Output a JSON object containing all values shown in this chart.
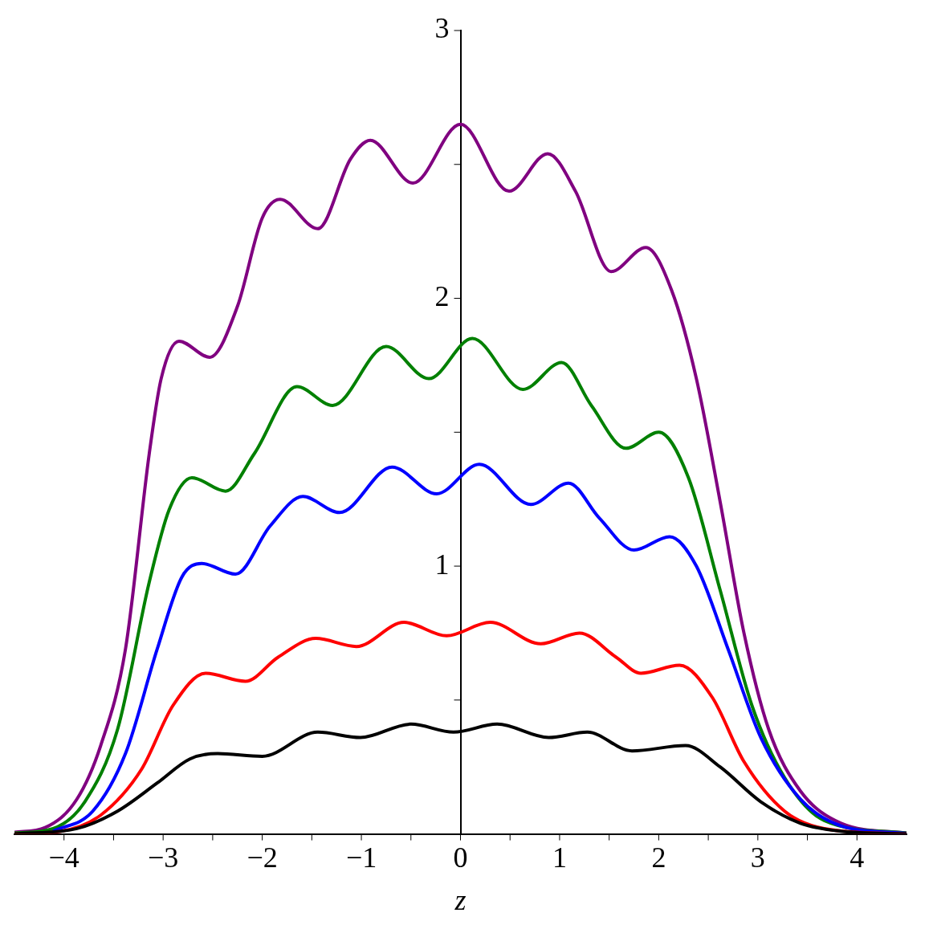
{
  "chart_data": {
    "type": "line",
    "xlabel": "z",
    "xlim": [
      -4.5,
      4.5
    ],
    "ylim": [
      0,
      3
    ],
    "xticks": [
      -4,
      {
        "value": -3.5,
        "label": null
      },
      -3,
      {
        "value": -2.5,
        "label": null
      },
      -2,
      {
        "value": -1.5,
        "label": null
      },
      -1,
      {
        "value": -0.5,
        "label": null
      },
      0,
      {
        "value": 0.5,
        "label": null
      },
      1,
      {
        "value": 1.5,
        "label": null
      },
      2,
      {
        "value": 2.5,
        "label": null
      },
      3,
      {
        "value": 3.5,
        "label": null
      },
      4
    ],
    "yticks": [
      {
        "value": 0.5,
        "label": null
      },
      1,
      {
        "value": 1.5,
        "label": null
      },
      2,
      {
        "value": 2.5,
        "label": null
      },
      3
    ],
    "grid": false,
    "legend": false,
    "marker": "none",
    "line_style": "solid",
    "series": [
      {
        "color": "#000000",
        "x": [
          -4.5,
          -3.87,
          -3.46,
          -3.06,
          -2.73,
          -2.45,
          -2.0,
          -1.44,
          -1.01,
          -0.5,
          -0.07,
          0.37,
          0.89,
          1.28,
          1.73,
          2.27,
          2.62,
          3.03,
          3.43,
          3.84,
          4.5
        ],
        "values": [
          0,
          0.02,
          0.085,
          0.19,
          0.28,
          0.3,
          0.29,
          0.38,
          0.36,
          0.41,
          0.38,
          0.41,
          0.36,
          0.38,
          0.31,
          0.33,
          0.25,
          0.12,
          0.04,
          0.01,
          0
        ]
      },
      {
        "color": "#ff0000",
        "x": [
          -4.5,
          -4.03,
          -3.63,
          -3.22,
          -2.9,
          -2.57,
          -2.17,
          -1.84,
          -1.46,
          -1.05,
          -0.57,
          -0.14,
          0.3,
          0.81,
          1.2,
          1.57,
          1.82,
          2.21,
          2.54,
          2.86,
          3.27,
          3.67,
          4.5
        ],
        "values": [
          0,
          0.01,
          0.07,
          0.24,
          0.48,
          0.6,
          0.57,
          0.66,
          0.73,
          0.7,
          0.79,
          0.74,
          0.79,
          0.71,
          0.75,
          0.66,
          0.6,
          0.63,
          0.51,
          0.27,
          0.085,
          0.02,
          0
        ]
      },
      {
        "color": "#0000ff",
        "x": [
          -4.11,
          -3.71,
          -3.38,
          -3.06,
          -2.81,
          -2.61,
          -2.27,
          -1.92,
          -1.59,
          -1.22,
          -0.69,
          -0.24,
          0.19,
          0.71,
          1.09,
          1.4,
          1.75,
          2.11,
          2.38,
          2.7,
          3.03,
          3.43,
          3.84,
          4.5
        ],
        "values": [
          0.01,
          0.085,
          0.3,
          0.69,
          0.96,
          1.01,
          0.97,
          1.15,
          1.26,
          1.2,
          1.37,
          1.27,
          1.38,
          1.23,
          1.31,
          1.18,
          1.06,
          1.11,
          1.0,
          0.69,
          0.36,
          0.13,
          0.03,
          0.002
        ]
      },
      {
        "color": "#008000",
        "x": [
          -4.5,
          -4.11,
          -3.79,
          -3.46,
          -3.14,
          -2.94,
          -2.71,
          -2.37,
          -2.08,
          -1.65,
          -1.29,
          -0.75,
          -0.32,
          0.12,
          0.63,
          1.02,
          1.32,
          1.67,
          2.0,
          2.3,
          2.62,
          2.94,
          3.27,
          3.67,
          4.5
        ],
        "values": [
          0.003,
          0.02,
          0.12,
          0.39,
          0.94,
          1.21,
          1.33,
          1.28,
          1.42,
          1.67,
          1.6,
          1.82,
          1.7,
          1.85,
          1.66,
          1.76,
          1.6,
          1.44,
          1.5,
          1.33,
          0.91,
          0.48,
          0.21,
          0.05,
          0.003
        ]
      },
      {
        "color": "#800080",
        "x": [
          -4.5,
          -4.19,
          -3.87,
          -3.63,
          -3.38,
          -3.14,
          -3.02,
          -2.84,
          -2.53,
          -2.25,
          -2.0,
          -1.82,
          -1.44,
          -1.11,
          -0.91,
          -0.48,
          0,
          0.49,
          0.88,
          1.16,
          1.52,
          1.87,
          2.13,
          2.38,
          2.62,
          2.86,
          3.11,
          3.43,
          3.84,
          4.5
        ],
        "values": [
          0.006,
          0.024,
          0.13,
          0.33,
          0.69,
          1.42,
          1.7,
          1.84,
          1.78,
          1.97,
          2.3,
          2.37,
          2.26,
          2.52,
          2.59,
          2.43,
          2.65,
          2.4,
          2.54,
          2.4,
          2.1,
          2.19,
          2.03,
          1.7,
          1.24,
          0.75,
          0.39,
          0.16,
          0.04,
          0.003
        ]
      }
    ]
  }
}
